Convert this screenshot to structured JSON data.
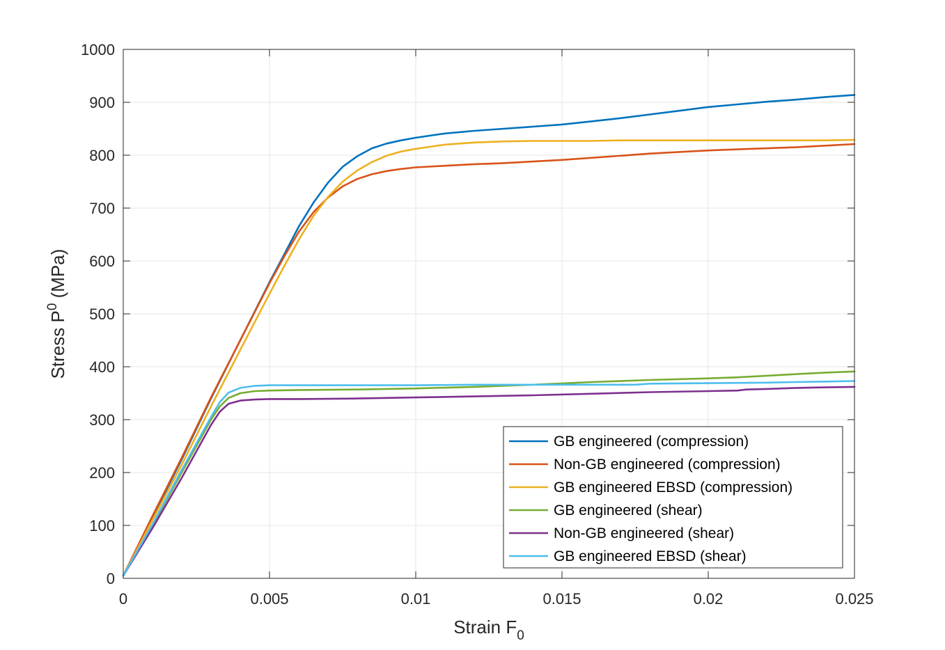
{
  "chart_data": {
    "type": "line",
    "title": "",
    "xlabel": "Strain F",
    "xlabel_sub": "0",
    "ylabel": "Stress P",
    "ylabel_sup": "0",
    "ylabel_unit": " (MPa)",
    "xlim": [
      0,
      0.025
    ],
    "ylim": [
      0,
      1000
    ],
    "xticks": [
      0,
      0.005,
      0.01,
      0.015,
      0.02,
      0.025
    ],
    "xtick_labels": [
      "0",
      "0.005",
      "0.01",
      "0.015",
      "0.02",
      "0.025"
    ],
    "yticks": [
      0,
      100,
      200,
      300,
      400,
      500,
      600,
      700,
      800,
      900,
      1000
    ],
    "ytick_labels": [
      "0",
      "100",
      "200",
      "300",
      "400",
      "500",
      "600",
      "700",
      "800",
      "900",
      "1000"
    ],
    "grid": true,
    "legend_position": "bottom-right",
    "series": [
      {
        "name": "GB engineered (compression)",
        "color": "#0072BD",
        "points": [
          [
            0,
            5
          ],
          [
            0.001,
            115
          ],
          [
            0.002,
            225
          ],
          [
            0.003,
            340
          ],
          [
            0.004,
            450
          ],
          [
            0.005,
            560
          ],
          [
            0.0055,
            612
          ],
          [
            0.006,
            665
          ],
          [
            0.0065,
            710
          ],
          [
            0.007,
            748
          ],
          [
            0.0075,
            778
          ],
          [
            0.008,
            798
          ],
          [
            0.0085,
            813
          ],
          [
            0.009,
            822
          ],
          [
            0.0095,
            828
          ],
          [
            0.01,
            833
          ],
          [
            0.011,
            841
          ],
          [
            0.012,
            846
          ],
          [
            0.013,
            850
          ],
          [
            0.014,
            854
          ],
          [
            0.015,
            858
          ],
          [
            0.016,
            864
          ],
          [
            0.017,
            870
          ],
          [
            0.018,
            877
          ],
          [
            0.019,
            884
          ],
          [
            0.02,
            891
          ],
          [
            0.021,
            896
          ],
          [
            0.022,
            901
          ],
          [
            0.023,
            905
          ],
          [
            0.024,
            910
          ],
          [
            0.025,
            914
          ]
        ]
      },
      {
        "name": "Non-GB engineered (compression)",
        "color": "#D95319",
        "points": [
          [
            0,
            5
          ],
          [
            0.001,
            118
          ],
          [
            0.002,
            228
          ],
          [
            0.003,
            342
          ],
          [
            0.004,
            450
          ],
          [
            0.005,
            558
          ],
          [
            0.0055,
            608
          ],
          [
            0.006,
            655
          ],
          [
            0.0065,
            692
          ],
          [
            0.007,
            720
          ],
          [
            0.0075,
            741
          ],
          [
            0.008,
            755
          ],
          [
            0.0085,
            764
          ],
          [
            0.009,
            770
          ],
          [
            0.0095,
            774
          ],
          [
            0.01,
            777
          ],
          [
            0.011,
            780
          ],
          [
            0.012,
            783
          ],
          [
            0.013,
            785
          ],
          [
            0.014,
            788
          ],
          [
            0.015,
            791
          ],
          [
            0.016,
            795
          ],
          [
            0.017,
            799
          ],
          [
            0.018,
            803
          ],
          [
            0.019,
            806
          ],
          [
            0.02,
            809
          ],
          [
            0.021,
            811
          ],
          [
            0.022,
            813
          ],
          [
            0.023,
            815
          ],
          [
            0.024,
            818
          ],
          [
            0.025,
            821
          ]
        ]
      },
      {
        "name": "GB engineered EBSD (compression)",
        "color": "#EDB120",
        "points": [
          [
            0,
            5
          ],
          [
            0.001,
            110
          ],
          [
            0.002,
            215
          ],
          [
            0.003,
            325
          ],
          [
            0.004,
            432
          ],
          [
            0.005,
            538
          ],
          [
            0.0055,
            590
          ],
          [
            0.006,
            640
          ],
          [
            0.0065,
            685
          ],
          [
            0.007,
            721
          ],
          [
            0.0075,
            750
          ],
          [
            0.008,
            771
          ],
          [
            0.0085,
            787
          ],
          [
            0.009,
            799
          ],
          [
            0.0095,
            807
          ],
          [
            0.01,
            812
          ],
          [
            0.011,
            820
          ],
          [
            0.012,
            824
          ],
          [
            0.013,
            826
          ],
          [
            0.014,
            827
          ],
          [
            0.015,
            827
          ],
          [
            0.016,
            827
          ],
          [
            0.017,
            828
          ],
          [
            0.018,
            828
          ],
          [
            0.019,
            828
          ],
          [
            0.02,
            828
          ],
          [
            0.021,
            828
          ],
          [
            0.022,
            828
          ],
          [
            0.023,
            828
          ],
          [
            0.024,
            828
          ],
          [
            0.025,
            829
          ]
        ]
      },
      {
        "name": "GB engineered (shear)",
        "color": "#77AC30",
        "points": [
          [
            0,
            5
          ],
          [
            0.001,
            100
          ],
          [
            0.002,
            200
          ],
          [
            0.0025,
            250
          ],
          [
            0.003,
            300
          ],
          [
            0.0033,
            325
          ],
          [
            0.0036,
            341
          ],
          [
            0.004,
            350
          ],
          [
            0.0045,
            354
          ],
          [
            0.005,
            355
          ],
          [
            0.006,
            356
          ],
          [
            0.008,
            357
          ],
          [
            0.01,
            359
          ],
          [
            0.012,
            362
          ],
          [
            0.014,
            366
          ],
          [
            0.016,
            371
          ],
          [
            0.018,
            375
          ],
          [
            0.02,
            378
          ],
          [
            0.021,
            380
          ],
          [
            0.022,
            383
          ],
          [
            0.023,
            386
          ],
          [
            0.024,
            389
          ],
          [
            0.025,
            391
          ]
        ]
      },
      {
        "name": "Non-GB engineered (shear)",
        "color": "#7E2F8E",
        "points": [
          [
            0,
            5
          ],
          [
            0.001,
            95
          ],
          [
            0.002,
            190
          ],
          [
            0.0025,
            240
          ],
          [
            0.003,
            290
          ],
          [
            0.0033,
            315
          ],
          [
            0.0036,
            330
          ],
          [
            0.004,
            336
          ],
          [
            0.0045,
            338
          ],
          [
            0.005,
            339
          ],
          [
            0.006,
            339
          ],
          [
            0.008,
            340
          ],
          [
            0.01,
            342
          ],
          [
            0.012,
            344
          ],
          [
            0.014,
            346
          ],
          [
            0.016,
            349
          ],
          [
            0.018,
            352
          ],
          [
            0.02,
            354
          ],
          [
            0.021,
            355
          ],
          [
            0.0213,
            357
          ],
          [
            0.022,
            358
          ],
          [
            0.023,
            360
          ],
          [
            0.024,
            361
          ],
          [
            0.025,
            362
          ]
        ]
      },
      {
        "name": "GB engineered EBSD (shear)",
        "color": "#4DBEEE",
        "points": [
          [
            0,
            5
          ],
          [
            0.001,
            102
          ],
          [
            0.002,
            205
          ],
          [
            0.0025,
            255
          ],
          [
            0.003,
            305
          ],
          [
            0.0033,
            333
          ],
          [
            0.0036,
            351
          ],
          [
            0.004,
            360
          ],
          [
            0.0045,
            364
          ],
          [
            0.005,
            365
          ],
          [
            0.006,
            365
          ],
          [
            0.008,
            365
          ],
          [
            0.01,
            365
          ],
          [
            0.012,
            366
          ],
          [
            0.014,
            366
          ],
          [
            0.016,
            366
          ],
          [
            0.0175,
            366
          ],
          [
            0.018,
            368
          ],
          [
            0.02,
            369
          ],
          [
            0.022,
            370
          ],
          [
            0.023,
            371
          ],
          [
            0.024,
            372
          ],
          [
            0.025,
            373
          ]
        ]
      }
    ]
  }
}
